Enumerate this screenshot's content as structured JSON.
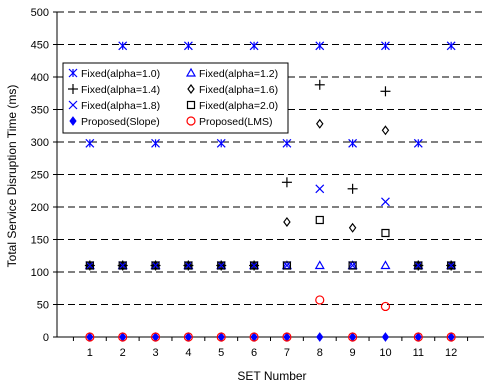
{
  "chart_data": {
    "type": "scatter",
    "xlabel": "SET Number",
    "ylabel": "Total Service Disruption Time (ms)",
    "x": [
      1,
      2,
      3,
      4,
      5,
      6,
      7,
      8,
      9,
      10,
      11,
      12
    ],
    "xlim": [
      0,
      13
    ],
    "ylim": [
      0,
      500
    ],
    "yticks": [
      0,
      50,
      100,
      150,
      200,
      250,
      300,
      350,
      400,
      450,
      500
    ],
    "grid": "horizontal-dashed",
    "legend_position": "top-left",
    "series": [
      {
        "name": "Fixed(alpha=1.0)",
        "marker": "asterisk",
        "color": "#0000ff",
        "values": [
          298,
          448,
          298,
          448,
          298,
          448,
          298,
          448,
          298,
          448,
          298,
          448
        ]
      },
      {
        "name": "Fixed(alpha=1.2)",
        "marker": "triangle",
        "color": "#0000ff",
        "values": [
          110,
          110,
          110,
          110,
          110,
          110,
          110,
          110,
          110,
          110,
          110,
          110
        ]
      },
      {
        "name": "Fixed(alpha=1.4)",
        "marker": "plus",
        "color": "#000000",
        "values": [
          110,
          110,
          110,
          110,
          110,
          110,
          238,
          388,
          228,
          378,
          110,
          110
        ]
      },
      {
        "name": "Fixed(alpha=1.6)",
        "marker": "diamond-open",
        "color": "#000000",
        "values": [
          110,
          110,
          110,
          110,
          110,
          110,
          177,
          328,
          168,
          318,
          110,
          110
        ]
      },
      {
        "name": "Fixed(alpha=1.8)",
        "marker": "x",
        "color": "#0000ff",
        "values": [
          110,
          110,
          110,
          110,
          110,
          110,
          110,
          228,
          110,
          208,
          110,
          110
        ]
      },
      {
        "name": "Fixed(alpha=2.0)",
        "marker": "square-open",
        "color": "#000000",
        "values": [
          110,
          110,
          110,
          110,
          110,
          110,
          110,
          180,
          110,
          160,
          110,
          110
        ]
      },
      {
        "name": "Proposed(Slope)",
        "marker": "diamond-filled",
        "color": "#0000ff",
        "values": [
          0,
          0,
          0,
          0,
          0,
          0,
          0,
          0,
          0,
          0,
          0,
          0
        ]
      },
      {
        "name": "Proposed(LMS)",
        "marker": "circle-open",
        "color": "#ff0000",
        "values": [
          0,
          0,
          0,
          0,
          0,
          0,
          0,
          57,
          0,
          47,
          0,
          0
        ]
      }
    ]
  }
}
